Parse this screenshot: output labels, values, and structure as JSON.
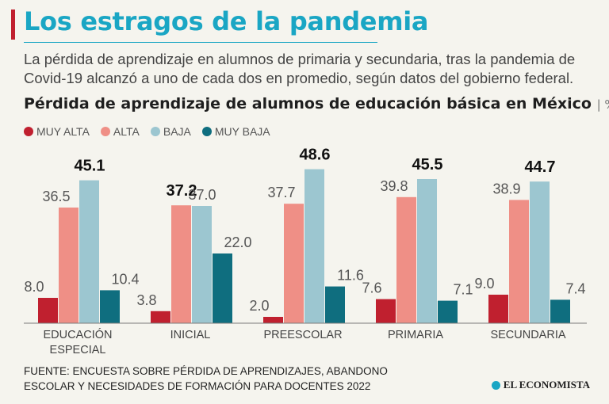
{
  "header": {
    "title": "Los estragos de la pandemia",
    "subtitle": "La pérdida de aprendizaje en alumnos de primaria y secundaria, tras la pandemia de Covid-19 alcanzó a uno de cada dos en promedio, según datos del gobierno federal."
  },
  "chart_title": {
    "text": "Pérdida de aprendizaje de alumnos de educación básica en México",
    "unit": "| %"
  },
  "colors": {
    "muy_alta": "#c0202f",
    "alta": "#ef8f86",
    "baja": "#9cc6d0",
    "muy_baja": "#0f6e7f",
    "baseline": "#7a7a7a"
  },
  "legend": [
    {
      "label": "MUY ALTA",
      "color": "#c0202f"
    },
    {
      "label": "ALTA",
      "color": "#ef8f86"
    },
    {
      "label": "BAJA",
      "color": "#9cc6d0"
    },
    {
      "label": "MUY BAJA",
      "color": "#0f6e7f"
    }
  ],
  "chart_data": {
    "type": "bar",
    "title": "Pérdida de aprendizaje de alumnos de educación básica en México",
    "unit": "%",
    "categories": [
      [
        "EDUCACIÓN",
        "ESPECIAL"
      ],
      [
        "INICIAL"
      ],
      [
        "PREESCOLAR"
      ],
      [
        "PRIMARIA"
      ],
      [
        "SECUNDARIA"
      ]
    ],
    "series": [
      {
        "name": "MUY ALTA",
        "color": "#c0202f",
        "values": [
          8.0,
          3.8,
          2.0,
          7.6,
          9.0
        ]
      },
      {
        "name": "ALTA",
        "color": "#ef8f86",
        "values": [
          36.5,
          37.2,
          37.7,
          39.8,
          38.9
        ]
      },
      {
        "name": "BAJA",
        "color": "#9cc6d0",
        "values": [
          45.1,
          37.0,
          48.6,
          45.5,
          44.7
        ]
      },
      {
        "name": "MUY BAJA",
        "color": "#0f6e7f",
        "values": [
          10.4,
          22.0,
          11.6,
          7.1,
          7.4
        ]
      }
    ],
    "value_labels": [
      [
        "8.0",
        "36.5",
        "45.1",
        "10.4"
      ],
      [
        "3.8",
        "37.2",
        "37.0",
        "22.0"
      ],
      [
        "2.0",
        "37.7",
        "48.6",
        "11.6"
      ],
      [
        "7.6",
        "39.8",
        "45.5",
        "7.1"
      ],
      [
        "9.0",
        "38.9",
        "44.7",
        "7.4"
      ]
    ],
    "highlighted": [
      [
        false,
        false,
        true,
        false
      ],
      [
        false,
        true,
        false,
        false
      ],
      [
        false,
        false,
        true,
        false
      ],
      [
        false,
        false,
        true,
        false
      ],
      [
        false,
        false,
        true,
        false
      ]
    ],
    "ylim": [
      0,
      50
    ],
    "grid": false,
    "legend_position": "top-left"
  },
  "footer": {
    "source_line1": "FUENTE: ENCUESTA SOBRE PÉRDIDA DE APRENDIZAJES, ABANDONO",
    "source_line2": "ESCOLAR Y NECESIDADES DE FORMACIÓN PARA DOCENTES 2022",
    "logo_text": "EL ECONOMISTA"
  }
}
